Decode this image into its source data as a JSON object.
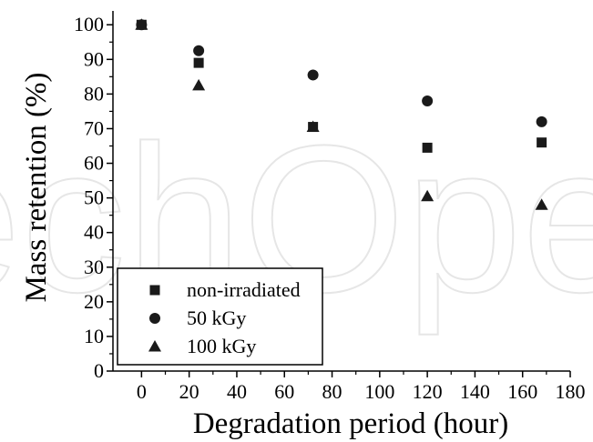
{
  "watermark": "techOpen",
  "chart_data": {
    "type": "scatter",
    "title": "",
    "xlabel": "Degradation period (hour)",
    "ylabel": "Mass retention (%)",
    "xlim": [
      -12,
      180
    ],
    "ylim": [
      0,
      104
    ],
    "xticks": [
      0,
      20,
      40,
      60,
      80,
      100,
      120,
      140,
      160,
      180
    ],
    "yticks": [
      0,
      10,
      20,
      30,
      40,
      50,
      60,
      70,
      80,
      90,
      100
    ],
    "grid": false,
    "legend_position": "bottom-left",
    "series": [
      {
        "name": "non-irradiated",
        "marker": "square",
        "color": "#1a1a1a",
        "x": [
          0,
          24,
          72,
          120,
          168
        ],
        "y": [
          100,
          89,
          70.5,
          64.5,
          66
        ]
      },
      {
        "name": "50 kGy",
        "marker": "circle",
        "color": "#1a1a1a",
        "x": [
          0,
          24,
          72,
          120,
          168
        ],
        "y": [
          100,
          92.5,
          85.5,
          78,
          72
        ]
      },
      {
        "name": "100 kGy",
        "marker": "triangle",
        "color": "#1a1a1a",
        "x": [
          0,
          24,
          72,
          120,
          168
        ],
        "y": [
          100,
          82.5,
          70.5,
          50.5,
          48
        ]
      }
    ]
  }
}
